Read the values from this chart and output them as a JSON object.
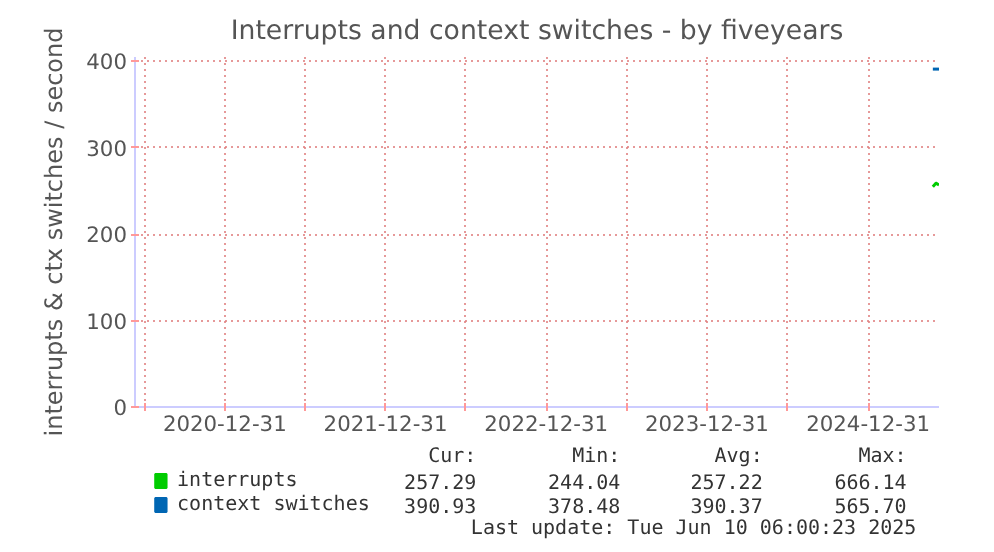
{
  "chart_data": {
    "type": "line",
    "title": "Interrupts and context switches - by fiveyears",
    "ylabel": "interrupts & ctx switches / second",
    "xlim": [
      "2020-06-10",
      "2025-06-10"
    ],
    "xticks": [
      {
        "value": "2020-07-01",
        "label": null
      },
      "2020-12-31",
      {
        "value": "2021-07-01",
        "label": null
      },
      "2021-12-31",
      {
        "value": "2022-07-01",
        "label": null
      },
      "2022-12-31",
      {
        "value": "2023-07-01",
        "label": null
      },
      "2023-12-31",
      {
        "value": "2024-07-01",
        "label": null
      },
      "2024-12-31"
    ],
    "ylim": [
      0,
      405
    ],
    "yticks": [
      0,
      100,
      200,
      300,
      400
    ],
    "grid": true,
    "legend": "bottom left",
    "series": [
      {
        "name": "interrupts",
        "color": "#00cc00",
        "x": [
          "2025-05-27",
          "2025-06-03",
          "2025-06-10"
        ],
        "values": [
          255,
          259,
          257
        ]
      },
      {
        "name": "context switches",
        "color": "#0066b3",
        "x": [
          "2025-05-27",
          "2025-06-03",
          "2025-06-10"
        ],
        "values": [
          391,
          391,
          391
        ]
      }
    ],
    "annotations": [
      "Cur:",
      "Min:",
      "Avg:",
      "Max:",
      "257.29",
      "244.04",
      "257.22",
      "666.14",
      "390.93",
      "378.48",
      "390.37",
      "565.70",
      "Last update: Tue Jun 10 06:00:23 2025"
    ]
  }
}
